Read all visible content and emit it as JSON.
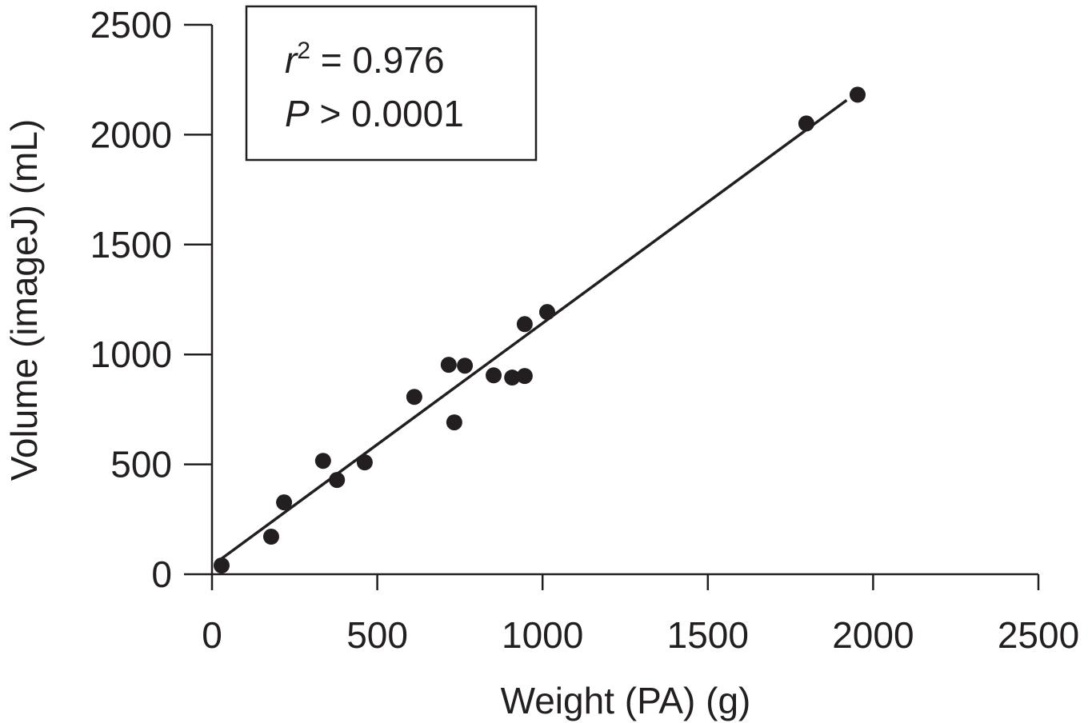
{
  "chart_data": {
    "type": "scatter",
    "title": "",
    "xlabel": "Weight (PA) (g)",
    "ylabel": "Volume (imageJ) (mL)",
    "xlim": [
      0,
      2500
    ],
    "ylim": [
      0,
      2500
    ],
    "xticks": [
      0,
      500,
      1000,
      1500,
      2000,
      2500
    ],
    "yticks": [
      0,
      500,
      1000,
      1500,
      2000,
      2500
    ],
    "grid": false,
    "marker_color": "#231f20",
    "points": [
      {
        "x": 29,
        "y": 40
      },
      {
        "x": 179,
        "y": 171
      },
      {
        "x": 218,
        "y": 327
      },
      {
        "x": 336,
        "y": 516
      },
      {
        "x": 378,
        "y": 429
      },
      {
        "x": 462,
        "y": 509
      },
      {
        "x": 612,
        "y": 807
      },
      {
        "x": 716,
        "y": 953
      },
      {
        "x": 765,
        "y": 949
      },
      {
        "x": 733,
        "y": 691
      },
      {
        "x": 852,
        "y": 905
      },
      {
        "x": 908,
        "y": 895
      },
      {
        "x": 946,
        "y": 902
      },
      {
        "x": 946,
        "y": 1138
      },
      {
        "x": 1014,
        "y": 1193
      },
      {
        "x": 1798,
        "y": 2051
      },
      {
        "x": 1953,
        "y": 2182
      }
    ],
    "fit_line": {
      "slope": 1.103,
      "intercept": 39,
      "x_range": [
        10,
        1920
      ]
    },
    "annotation": {
      "r_symbol": "r",
      "r_exp": "2",
      "r_value": " = 0.976",
      "p_symbol": "P",
      "p_value": " > 0.0001"
    }
  }
}
